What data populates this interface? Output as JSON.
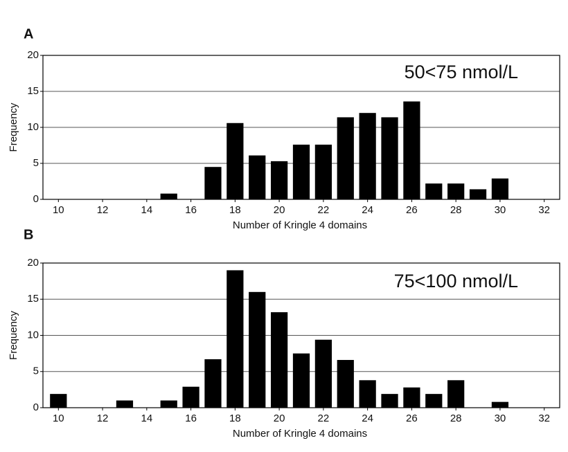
{
  "chart_data": [
    {
      "type": "bar",
      "title": "A",
      "annotation": "50<75 nmol/L",
      "x_label": "Number of Kringle 4 domains",
      "y_label": "Frequency",
      "x": [
        15,
        17,
        18,
        19,
        20,
        21,
        22,
        23,
        24,
        25,
        26,
        27,
        28,
        29,
        30
      ],
      "values": [
        0.8,
        4.5,
        10.6,
        6.1,
        5.3,
        7.6,
        7.6,
        11.4,
        12.0,
        11.4,
        13.6,
        2.2,
        2.2,
        1.4,
        2.9
      ],
      "color": "#000000",
      "xlim": [
        9.3,
        32.7
      ],
      "xticks": [
        10,
        12,
        14,
        16,
        18,
        20,
        22,
        24,
        26,
        28,
        30,
        32
      ],
      "ylim": [
        0,
        20
      ],
      "yticks": [
        0,
        5,
        10,
        15,
        20
      ],
      "grid": true
    },
    {
      "type": "bar",
      "title": "B",
      "annotation": "75<100 nmol/L",
      "x_label": "Number of Kringle 4 domains",
      "y_label": "Frequency",
      "x": [
        10,
        13,
        15,
        16,
        17,
        18,
        19,
        20,
        21,
        22,
        23,
        24,
        25,
        26,
        27,
        28,
        30
      ],
      "values": [
        1.9,
        1.0,
        1.0,
        2.9,
        6.7,
        19.0,
        16.0,
        13.2,
        7.5,
        9.4,
        6.6,
        3.8,
        1.9,
        2.8,
        1.9,
        3.8,
        0.8
      ],
      "color": "#000000",
      "xlim": [
        9.3,
        32.7
      ],
      "xticks": [
        10,
        12,
        14,
        16,
        18,
        20,
        22,
        24,
        26,
        28,
        30,
        32
      ],
      "ylim": [
        0,
        20
      ],
      "yticks": [
        0,
        5,
        10,
        15,
        20
      ],
      "grid": true
    }
  ]
}
